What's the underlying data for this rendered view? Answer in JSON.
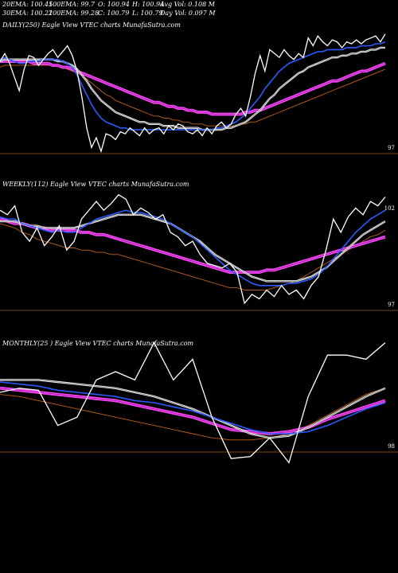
{
  "header": {
    "ema20": "20EMA: 100.45",
    "ema100": "100EMA: 99.7",
    "open": "O: 100.94",
    "high": "H: 100.94",
    "avg_vol": "Avg Vol: 0.108 M",
    "ema30": "30EMA: 100.21",
    "ema200": "200EMA: 99.28",
    "close": "C: 100.79",
    "low": "L: 100.79",
    "day_vol": "Day Vol: 0.097 M"
  },
  "colors": {
    "background": "#000000",
    "price": "#ffffff",
    "ema_fast": "#2b5bff",
    "ema_mid": "#f0f0f0",
    "ema_slow": "#c0601a",
    "ema_200": "#ff44ff",
    "refline": "#a06020"
  },
  "chart_data": [
    {
      "type": "line",
      "title": "DAILY(250) Eagle  View  VTEC charts MunafaSutra.com",
      "ref_label": "97",
      "ylim": [
        96,
        103
      ],
      "series": [
        {
          "key": "price",
          "values": [
            101.0,
            101.4,
            100.9,
            100.2,
            99.5,
            100.6,
            101.3,
            101.2,
            100.8,
            101.1,
            101.4,
            101.6,
            101.2,
            101.5,
            101.8,
            101.3,
            100.5,
            99.2,
            97.6,
            96.6,
            97.1,
            96.4,
            97.3,
            97.2,
            97.0,
            97.4,
            97.3,
            97.6,
            97.4,
            97.2,
            97.6,
            97.3,
            97.5,
            97.6,
            97.3,
            97.7,
            97.5,
            97.8,
            97.7,
            97.4,
            97.3,
            97.5,
            97.2,
            97.6,
            97.3,
            97.7,
            97.9,
            97.6,
            97.8,
            98.3,
            98.6,
            98.2,
            99.2,
            100.4,
            101.3,
            100.5,
            101.6,
            101.4,
            101.2,
            101.6,
            101.3,
            101.1,
            101.4,
            101.2,
            102.2,
            101.8,
            102.3,
            102.0,
            101.8,
            102.1,
            102.0,
            101.7,
            102.0,
            101.9,
            102.1,
            101.9,
            102.1,
            102.2,
            102.3,
            102.0,
            102.4
          ]
        },
        {
          "key": "ema20",
          "values": [
            101.1,
            101.2,
            101.1,
            101.0,
            100.9,
            100.9,
            101.0,
            101.0,
            101.0,
            101.1,
            101.1,
            101.1,
            101.1,
            101.0,
            100.9,
            100.7,
            100.3,
            99.8,
            99.3,
            98.8,
            98.4,
            98.1,
            97.9,
            97.8,
            97.7,
            97.6,
            97.6,
            97.5,
            97.5,
            97.5,
            97.5,
            97.5,
            97.5,
            97.5,
            97.5,
            97.5,
            97.5,
            97.5,
            97.5,
            97.5,
            97.5,
            97.5,
            97.5,
            97.5,
            97.5,
            97.6,
            97.6,
            97.7,
            97.8,
            97.9,
            98.1,
            98.3,
            98.6,
            98.9,
            99.2,
            99.6,
            99.9,
            100.2,
            100.5,
            100.7,
            100.9,
            101.0,
            101.1,
            101.2,
            101.3,
            101.4,
            101.5,
            101.5,
            101.6,
            101.6,
            101.6,
            101.6,
            101.7,
            101.7,
            101.7,
            101.8,
            101.8,
            101.8,
            101.9,
            101.9,
            102.0
          ]
        },
        {
          "key": "ema30",
          "values": [
            101.0,
            101.1,
            101.1,
            101.1,
            101.1,
            101.1,
            101.1,
            101.1,
            101.1,
            101.1,
            101.1,
            101.1,
            101.0,
            101.0,
            100.9,
            100.8,
            100.6,
            100.3,
            100.0,
            99.6,
            99.3,
            99.0,
            98.8,
            98.6,
            98.4,
            98.3,
            98.2,
            98.1,
            98.0,
            97.9,
            97.9,
            97.8,
            97.8,
            97.8,
            97.7,
            97.7,
            97.7,
            97.6,
            97.6,
            97.6,
            97.6,
            97.6,
            97.5,
            97.5,
            97.5,
            97.5,
            97.5,
            97.6,
            97.6,
            97.7,
            97.8,
            97.9,
            98.1,
            98.3,
            98.5,
            98.8,
            99.1,
            99.3,
            99.6,
            99.8,
            100.0,
            100.2,
            100.4,
            100.5,
            100.7,
            100.8,
            100.9,
            101.0,
            101.1,
            101.2,
            101.2,
            101.3,
            101.3,
            101.4,
            101.4,
            101.5,
            101.5,
            101.6,
            101.6,
            101.7,
            101.7
          ]
        },
        {
          "key": "ema100",
          "values": [
            100.7,
            100.8,
            100.8,
            100.8,
            100.8,
            100.8,
            100.8,
            100.8,
            100.8,
            100.8,
            100.8,
            100.8,
            100.8,
            100.7,
            100.6,
            100.5,
            100.4,
            100.3,
            100.1,
            99.9,
            99.7,
            99.5,
            99.3,
            99.2,
            99.0,
            98.9,
            98.8,
            98.7,
            98.6,
            98.5,
            98.4,
            98.3,
            98.2,
            98.2,
            98.1,
            98.1,
            98.0,
            98.0,
            97.9,
            97.9,
            97.8,
            97.8,
            97.8,
            97.7,
            97.7,
            97.7,
            97.7,
            97.7,
            97.7,
            97.7,
            97.8,
            97.8,
            97.9,
            97.9,
            98.0,
            98.1,
            98.2,
            98.3,
            98.4,
            98.5,
            98.6,
            98.7,
            98.8,
            98.9,
            99.0,
            99.1,
            99.2,
            99.3,
            99.4,
            99.5,
            99.6,
            99.7,
            99.8,
            99.9,
            100.0,
            100.1,
            100.2,
            100.3,
            100.4,
            100.5,
            100.6
          ]
        },
        {
          "key": "ema200",
          "values": [
            101.0,
            101.0,
            101.0,
            101.0,
            101.0,
            101.0,
            101.0,
            100.9,
            100.9,
            100.9,
            100.9,
            100.8,
            100.8,
            100.7,
            100.7,
            100.6,
            100.5,
            100.4,
            100.3,
            100.2,
            100.1,
            100.0,
            99.9,
            99.8,
            99.7,
            99.6,
            99.5,
            99.4,
            99.3,
            99.2,
            99.1,
            99.0,
            98.9,
            98.9,
            98.8,
            98.7,
            98.7,
            98.6,
            98.6,
            98.5,
            98.5,
            98.4,
            98.4,
            98.4,
            98.3,
            98.3,
            98.3,
            98.3,
            98.3,
            98.3,
            98.3,
            98.4,
            98.4,
            98.5,
            98.5,
            98.6,
            98.7,
            98.8,
            98.9,
            99.0,
            99.1,
            99.2,
            99.3,
            99.4,
            99.5,
            99.6,
            99.7,
            99.8,
            99.9,
            100.0,
            100.0,
            100.1,
            100.2,
            100.3,
            100.4,
            100.5,
            100.5,
            100.6,
            100.7,
            100.8,
            100.9
          ]
        }
      ]
    },
    {
      "type": "line",
      "title": "WEEKLY(112) Eagle  View  VTEC charts MunafaSutra.com",
      "top_label": "102",
      "ref_label": "97",
      "ylim": [
        96.5,
        102.5
      ],
      "series": [
        {
          "key": "price",
          "values": [
            101.2,
            101.0,
            101.4,
            100.2,
            99.8,
            100.4,
            99.6,
            100.0,
            100.5,
            99.4,
            99.8,
            100.8,
            101.2,
            101.6,
            101.2,
            101.5,
            101.9,
            101.7,
            101.0,
            101.3,
            101.1,
            100.8,
            101.0,
            100.2,
            100.0,
            99.6,
            99.8,
            99.2,
            98.8,
            98.7,
            98.6,
            98.8,
            98.4,
            97.0,
            97.4,
            97.2,
            97.6,
            97.3,
            97.8,
            97.4,
            97.6,
            97.2,
            97.8,
            98.2,
            99.4,
            100.8,
            100.2,
            100.9,
            101.3,
            101.0,
            101.6,
            101.4,
            101.8
          ]
        },
        {
          "key": "ema20",
          "values": [
            100.9,
            100.8,
            100.8,
            100.6,
            100.5,
            100.4,
            100.3,
            100.2,
            100.3,
            100.2,
            100.2,
            100.4,
            100.6,
            100.8,
            100.9,
            101.0,
            101.1,
            101.2,
            101.1,
            101.1,
            101.0,
            100.9,
            100.8,
            100.6,
            100.4,
            100.2,
            100.0,
            99.7,
            99.4,
            99.1,
            98.8,
            98.5,
            98.3,
            98.1,
            97.9,
            97.8,
            97.8,
            97.8,
            97.8,
            97.9,
            97.9,
            98.0,
            98.1,
            98.3,
            98.6,
            99.0,
            99.4,
            99.8,
            100.2,
            100.5,
            100.8,
            101.0,
            101.2
          ]
        },
        {
          "key": "ema30",
          "values": [
            100.7,
            100.7,
            100.7,
            100.6,
            100.5,
            100.5,
            100.4,
            100.4,
            100.4,
            100.4,
            100.4,
            100.5,
            100.6,
            100.7,
            100.8,
            100.9,
            101.0,
            101.0,
            101.0,
            101.0,
            100.9,
            100.8,
            100.7,
            100.6,
            100.4,
            100.2,
            100.0,
            99.8,
            99.5,
            99.2,
            99.0,
            98.8,
            98.6,
            98.4,
            98.2,
            98.1,
            98.0,
            98.0,
            98.0,
            98.0,
            98.0,
            98.1,
            98.2,
            98.4,
            98.6,
            98.9,
            99.2,
            99.5,
            99.8,
            100.1,
            100.3,
            100.5,
            100.7
          ]
        },
        {
          "key": "ema100",
          "values": [
            100.6,
            100.5,
            100.4,
            100.2,
            100.1,
            99.9,
            99.8,
            99.7,
            99.6,
            99.5,
            99.5,
            99.4,
            99.4,
            99.3,
            99.3,
            99.2,
            99.2,
            99.1,
            99.0,
            98.9,
            98.8,
            98.7,
            98.6,
            98.5,
            98.4,
            98.3,
            98.2,
            98.1,
            98.0,
            97.9,
            97.8,
            97.7,
            97.7,
            97.6,
            97.6,
            97.6,
            97.6,
            97.7,
            97.8,
            97.9,
            98.0,
            98.2,
            98.4,
            98.6,
            98.8,
            99.0,
            99.2,
            99.4,
            99.6,
            99.8,
            100.0,
            100.1,
            100.3
          ]
        },
        {
          "key": "ema200",
          "values": [
            100.8,
            100.7,
            100.6,
            100.6,
            100.5,
            100.4,
            100.4,
            100.3,
            100.3,
            100.3,
            100.3,
            100.2,
            100.2,
            100.1,
            100.1,
            100.0,
            99.9,
            99.8,
            99.7,
            99.6,
            99.5,
            99.4,
            99.3,
            99.2,
            99.1,
            99.0,
            98.9,
            98.8,
            98.7,
            98.6,
            98.5,
            98.4,
            98.4,
            98.4,
            98.4,
            98.4,
            98.5,
            98.5,
            98.6,
            98.7,
            98.8,
            98.9,
            99.0,
            99.1,
            99.2,
            99.3,
            99.4,
            99.5,
            99.6,
            99.7,
            99.8,
            99.9,
            100.0
          ]
        }
      ]
    },
    {
      "type": "line",
      "title": "MONTHLY(25         ) Eagle  View  VTEC charts MunafaSutra.com",
      "ref_label": "98",
      "ylim": [
        96.5,
        103.5
      ],
      "series": [
        {
          "key": "price",
          "values": [
            101.0,
            101.2,
            101.1,
            99.4,
            99.8,
            101.6,
            102.0,
            101.6,
            103.4,
            101.6,
            102.6,
            99.8,
            97.8,
            97.9,
            98.8,
            97.6,
            100.8,
            102.8,
            102.8,
            102.6,
            103.4
          ]
        },
        {
          "key": "ema20",
          "values": [
            101.5,
            101.4,
            101.3,
            101.1,
            101.0,
            100.9,
            100.8,
            100.6,
            100.5,
            100.3,
            100.1,
            99.8,
            99.5,
            99.2,
            99.0,
            99.0,
            99.1,
            99.4,
            99.8,
            100.2,
            100.5
          ]
        },
        {
          "key": "ema30",
          "values": [
            101.6,
            101.6,
            101.6,
            101.5,
            101.4,
            101.3,
            101.2,
            101.0,
            100.8,
            100.5,
            100.2,
            99.8,
            99.4,
            99.0,
            98.8,
            98.9,
            99.3,
            99.8,
            100.3,
            100.8,
            101.2
          ]
        },
        {
          "key": "ema100",
          "values": [
            100.9,
            100.8,
            100.6,
            100.4,
            100.2,
            100.0,
            99.8,
            99.6,
            99.4,
            99.2,
            99.0,
            98.8,
            98.7,
            98.7,
            98.8,
            99.0,
            99.4,
            99.9,
            100.4,
            100.9,
            101.2
          ]
        },
        {
          "key": "ema200",
          "values": [
            101.2,
            101.1,
            101.0,
            100.9,
            100.8,
            100.7,
            100.6,
            100.4,
            100.2,
            100.0,
            99.8,
            99.5,
            99.2,
            99.1,
            99.0,
            99.1,
            99.3,
            99.7,
            100.0,
            100.3,
            100.6
          ]
        }
      ]
    }
  ]
}
